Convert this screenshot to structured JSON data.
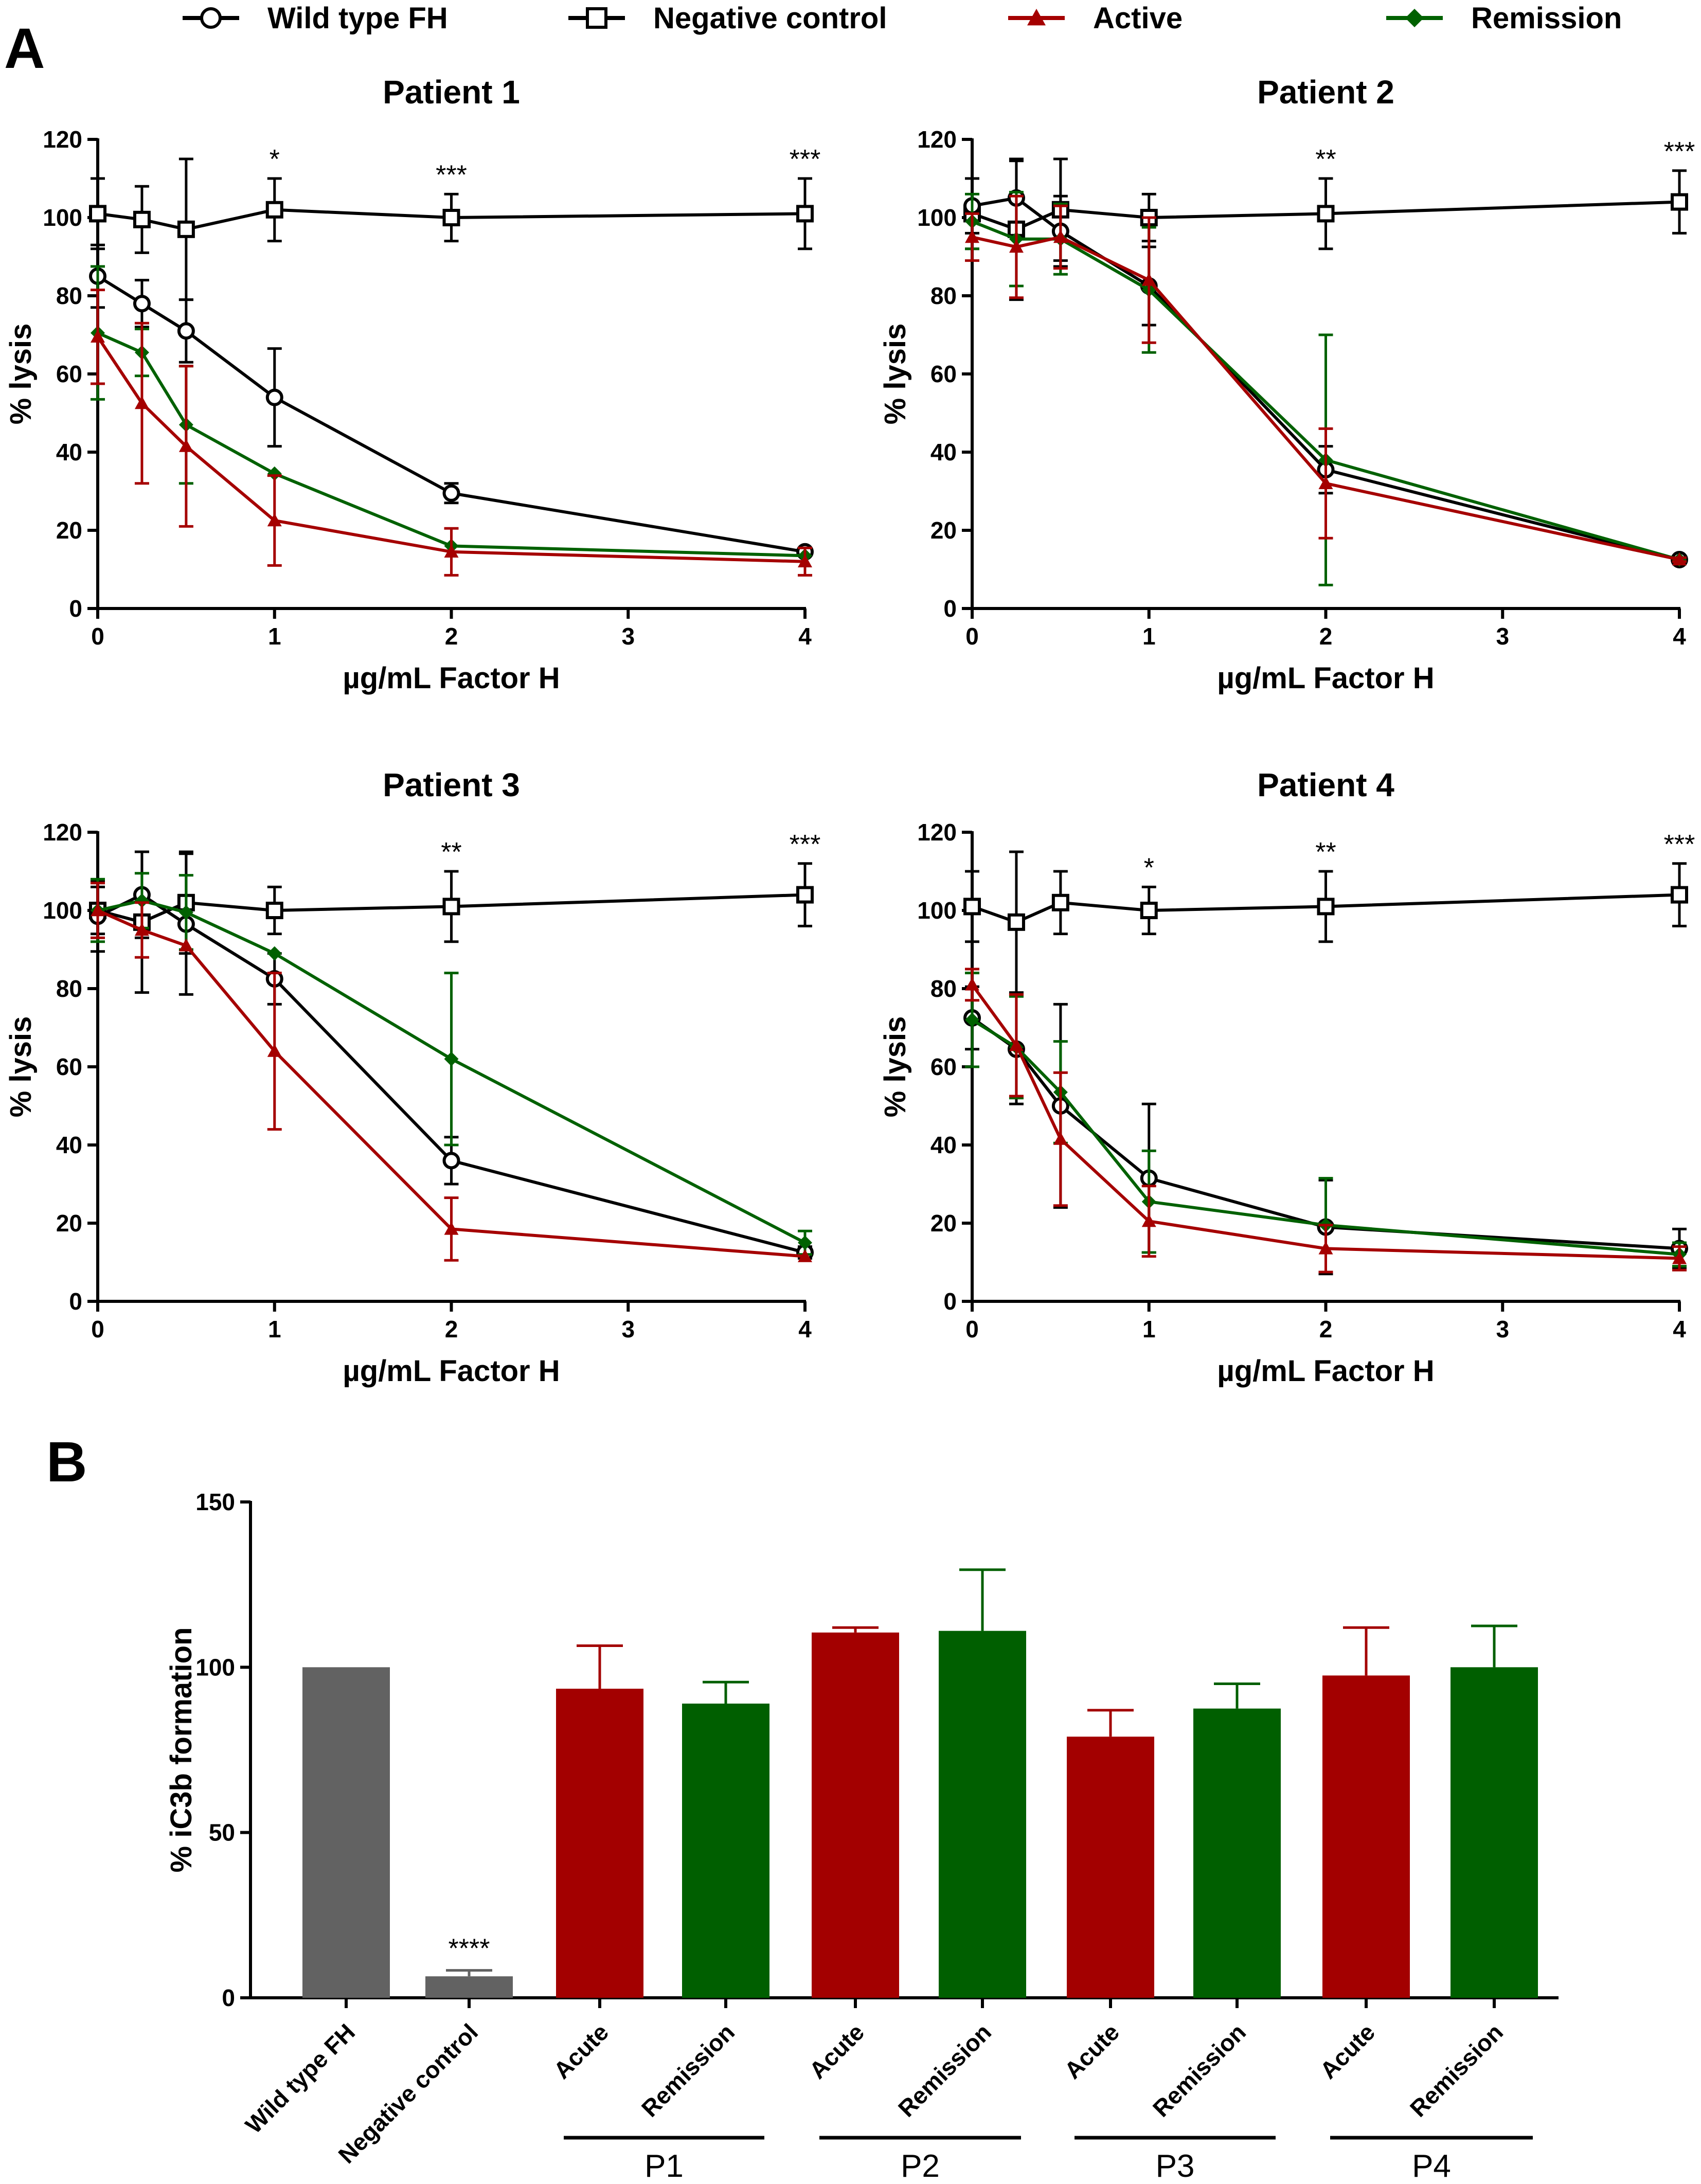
{
  "colors": {
    "wild_type": "#000000",
    "negative_control": "#000000",
    "active": "#a50000",
    "remission": "#006100",
    "bar_grey": "#626262",
    "bar_red": "#a30000",
    "bar_green": "#005f00"
  },
  "legend": [
    {
      "label": "Wild type FH",
      "marker": "circle",
      "color": "#000000"
    },
    {
      "label": "Negative control",
      "marker": "square",
      "color": "#000000"
    },
    {
      "label": "Active",
      "marker": "triangle",
      "color": "#a50000"
    },
    {
      "label": "Remission",
      "marker": "diamond",
      "color": "#006100"
    }
  ],
  "panel_labels": {
    "a": "A",
    "b": "B"
  },
  "chart_data": [
    {
      "type": "line",
      "title": "Patient 1",
      "xlabel": "µg/mL Factor H",
      "ylabel": "% lysis",
      "xlim": [
        0,
        4
      ],
      "ylim": [
        0,
        120
      ],
      "xticks": [
        0,
        1,
        2,
        3,
        4
      ],
      "yticks": [
        0,
        20,
        40,
        60,
        80,
        100,
        120
      ],
      "x": [
        0,
        0.25,
        0.5,
        1,
        2,
        4
      ],
      "series": [
        {
          "name": "Negative control",
          "marker": "square",
          "color": "#000000",
          "values": [
            101,
            99.5,
            97,
            102,
            100,
            101
          ],
          "errors": [
            9,
            8.5,
            18,
            8,
            6,
            9
          ]
        },
        {
          "name": "Wild type FH",
          "marker": "circle",
          "color": "#000000",
          "values": [
            85,
            78,
            71,
            54,
            29.5,
            14.5
          ],
          "errors": [
            8,
            6,
            8,
            12.5,
            2.5,
            1
          ]
        },
        {
          "name": "Remission",
          "marker": "diamond",
          "color": "#006100",
          "values": [
            70.5,
            65.5,
            47,
            34.5,
            16,
            13.5
          ],
          "errors": [
            17,
            6,
            15,
            0,
            0,
            0
          ]
        },
        {
          "name": "Active",
          "marker": "triangle",
          "color": "#a50000",
          "values": [
            69.5,
            52.5,
            41.5,
            22.5,
            14.5,
            12
          ],
          "errors": [
            12,
            20.5,
            20.5,
            11.5,
            6,
            3.5
          ]
        }
      ],
      "annotations": [
        {
          "x": 1,
          "text": "*"
        },
        {
          "x": 2,
          "text": "***"
        },
        {
          "x": 4,
          "text": "***"
        }
      ]
    },
    {
      "type": "line",
      "title": "Patient 2",
      "xlabel": "µg/mL Factor H",
      "ylabel": "% lysis",
      "xlim": [
        0,
        4
      ],
      "ylim": [
        0,
        120
      ],
      "xticks": [
        0,
        1,
        2,
        3,
        4
      ],
      "yticks": [
        0,
        20,
        40,
        60,
        80,
        100,
        120
      ],
      "x": [
        0,
        0.25,
        0.5,
        1,
        2,
        4
      ],
      "series": [
        {
          "name": "Negative control",
          "marker": "square",
          "color": "#000000",
          "values": [
            101,
            97,
            102,
            100,
            101,
            104
          ],
          "errors": [
            9,
            18,
            13,
            6,
            9,
            8
          ]
        },
        {
          "name": "Wild type FH",
          "marker": "circle",
          "color": "#000000",
          "values": [
            103,
            105,
            96.5,
            82.5,
            35.5,
            12.5
          ],
          "errors": [
            7,
            9.5,
            9,
            10,
            6,
            0.5
          ]
        },
        {
          "name": "Remission",
          "marker": "diamond",
          "color": "#006100",
          "values": [
            99,
            94.5,
            94.5,
            81.5,
            38,
            12.5
          ],
          "errors": [
            7,
            12,
            9,
            16,
            32,
            0.5
          ]
        },
        {
          "name": "Active",
          "marker": "triangle",
          "color": "#a50000",
          "values": [
            95,
            92.5,
            95,
            84,
            32,
            12.5
          ],
          "errors": [
            6,
            13,
            8,
            16,
            14,
            0.5
          ]
        }
      ],
      "annotations": [
        {
          "x": 2,
          "text": "**"
        },
        {
          "x": 4,
          "text": "***"
        }
      ]
    },
    {
      "type": "line",
      "title": "Patient 3",
      "xlabel": "µg/mL Factor H",
      "ylabel": "% lysis",
      "xlim": [
        0,
        4
      ],
      "ylim": [
        0,
        120
      ],
      "xticks": [
        0,
        1,
        2,
        3,
        4
      ],
      "yticks": [
        0,
        20,
        40,
        60,
        80,
        100,
        120
      ],
      "x": [
        0,
        0.25,
        0.5,
        1,
        2,
        4
      ],
      "series": [
        {
          "name": "Negative control",
          "marker": "square",
          "color": "#000000",
          "values": [
            100,
            97,
            102,
            100,
            101,
            104
          ],
          "errors": [
            6,
            18,
            13,
            6,
            9,
            8
          ]
        },
        {
          "name": "Wild type FH",
          "marker": "circle",
          "color": "#000000",
          "values": [
            98.5,
            104,
            96.5,
            82.5,
            36,
            12.5
          ],
          "errors": [
            9,
            11,
            18,
            6.5,
            6,
            1.5
          ]
        },
        {
          "name": "Remission",
          "marker": "diamond",
          "color": "#006100",
          "values": [
            100,
            102.5,
            99.5,
            89,
            62,
            15
          ],
          "errors": [
            8,
            7,
            9.5,
            0,
            22,
            3
          ]
        },
        {
          "name": "Active",
          "marker": "triangle",
          "color": "#a50000",
          "values": [
            100,
            95,
            91,
            64,
            18.5,
            11.5
          ],
          "errors": [
            7,
            7,
            0,
            20,
            8,
            0
          ]
        }
      ],
      "annotations": [
        {
          "x": 2,
          "text": "**"
        },
        {
          "x": 4,
          "text": "***"
        }
      ]
    },
    {
      "type": "line",
      "title": "Patient 4",
      "xlabel": "µg/mL Factor H",
      "ylabel": "% lysis",
      "xlim": [
        0,
        4
      ],
      "ylim": [
        0,
        120
      ],
      "xticks": [
        0,
        1,
        2,
        3,
        4
      ],
      "yticks": [
        0,
        20,
        40,
        60,
        80,
        100,
        120
      ],
      "x": [
        0,
        0.25,
        0.5,
        1,
        2,
        4
      ],
      "series": [
        {
          "name": "Negative control",
          "marker": "square",
          "color": "#000000",
          "values": [
            101,
            97,
            102,
            100,
            101,
            104
          ],
          "errors": [
            9,
            18,
            8,
            6,
            9,
            8
          ]
        },
        {
          "name": "Wild type FH",
          "marker": "circle",
          "color": "#000000",
          "values": [
            72.5,
            64.5,
            50,
            31.5,
            19,
            13.5
          ],
          "errors": [
            8,
            14,
            26,
            19,
            12,
            5
          ]
        },
        {
          "name": "Remission",
          "marker": "diamond",
          "color": "#006100",
          "values": [
            72,
            65,
            53.5,
            25.5,
            19.5,
            12
          ],
          "errors": [
            12,
            13,
            13,
            13,
            12,
            3
          ]
        },
        {
          "name": "Active",
          "marker": "triangle",
          "color": "#a50000",
          "values": [
            81,
            65.5,
            41.5,
            20.5,
            13.5,
            11
          ],
          "errors": [
            4,
            13,
            17,
            9,
            6,
            3
          ]
        }
      ],
      "annotations": [
        {
          "x": 1,
          "text": "*"
        },
        {
          "x": 2,
          "text": "**"
        },
        {
          "x": 4,
          "text": "***"
        }
      ]
    },
    {
      "type": "bar",
      "ylabel": "% iC3b formation",
      "ylim": [
        0,
        150
      ],
      "yticks": [
        0,
        50,
        100,
        150
      ],
      "categories": [
        "Wild type FH",
        "Negative control",
        "Acute",
        "Remission",
        "Acute",
        "Remission",
        "Acute",
        "Remission",
        "Acute",
        "Remission"
      ],
      "values": [
        100,
        6.5,
        93.5,
        89,
        110.5,
        111,
        79,
        87.5,
        97.5,
        100
      ],
      "errors": [
        0,
        1.8,
        13,
        6.5,
        1.5,
        18.5,
        8,
        7.5,
        14.5,
        12.5
      ],
      "colors": [
        "#626262",
        "#626262",
        "#a30000",
        "#005f00",
        "#a30000",
        "#005f00",
        "#a30000",
        "#005f00",
        "#a30000",
        "#005f00"
      ],
      "groups": [
        {
          "label": "P1",
          "members": [
            2,
            3
          ]
        },
        {
          "label": "P2",
          "members": [
            4,
            5
          ]
        },
        {
          "label": "P3",
          "members": [
            6,
            7
          ]
        },
        {
          "label": "P4",
          "members": [
            8,
            9
          ]
        }
      ],
      "annotations": [
        {
          "index": 1,
          "text": "****"
        }
      ]
    }
  ]
}
